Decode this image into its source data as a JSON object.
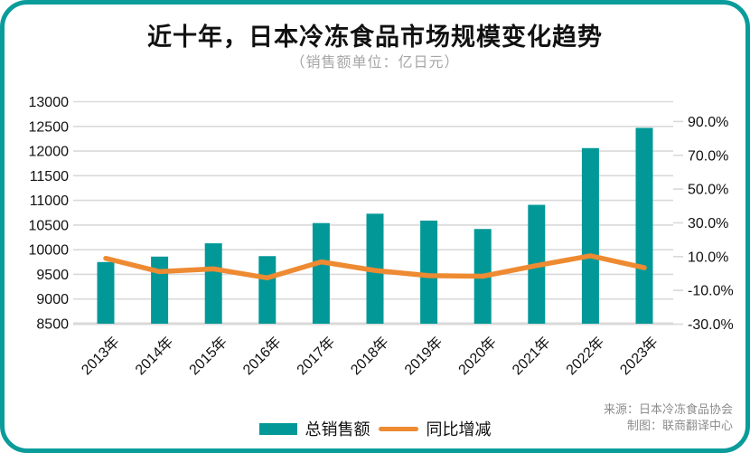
{
  "title": "近十年，日本冷冻食品市场规模变化趋势",
  "subtitle": "（销售额单位：亿日元）",
  "legend": {
    "bars_label": "总销售额",
    "line_label": "同比增减"
  },
  "source": {
    "line1": "来源：日本冷冻食品协会",
    "line2": "制图：联商翻译中心"
  },
  "colors": {
    "bar": "#029898",
    "line": "#ee8a31",
    "grid": "#d9d9d9",
    "frame": "#0a9c9a",
    "axis_text": "#111111",
    "subtitle_text": "#a6a6a6",
    "source_text": "#8c8c8c"
  },
  "chart_data": {
    "type": "bar",
    "subtype": "combo bar+line, dual axis",
    "title": "近十年，日本冷冻食品市场规模变化趋势",
    "subtitle": "（销售额单位：亿日元）",
    "categories": [
      "2013年",
      "2014年",
      "2015年",
      "2016年",
      "2017年",
      "2018年",
      "2019年",
      "2020年",
      "2021年",
      "2022年",
      "2023年"
    ],
    "series": [
      {
        "name": "总销售额",
        "type": "bar",
        "axis": "left",
        "unit": "亿日元",
        "values": [
          9750,
          9860,
          10130,
          9870,
          10540,
          10730,
          10590,
          10420,
          10910,
          12060,
          12470
        ]
      },
      {
        "name": "同比增减",
        "type": "line",
        "axis": "right",
        "unit": "%",
        "values": [
          9.0,
          1.1,
          2.7,
          -2.6,
          6.9,
          1.8,
          -1.3,
          -1.6,
          4.7,
          10.5,
          3.4
        ]
      }
    ],
    "left_axis": {
      "min": 8500,
      "max": 13000,
      "step": 500,
      "tick_labels": [
        "13000",
        "12500",
        "12000",
        "11500",
        "11000",
        "10500",
        "10000",
        "9500",
        "9000",
        "8500"
      ]
    },
    "right_axis": {
      "min": -30,
      "max": 90,
      "step": 20,
      "tick_labels": [
        "90.0%",
        "70.0%",
        "50.0%",
        "30.0%",
        "10.0%",
        "-10.0%",
        "-30.0%"
      ]
    },
    "grid": true,
    "legend_position": "bottom",
    "x_tick_rotation": -45
  }
}
